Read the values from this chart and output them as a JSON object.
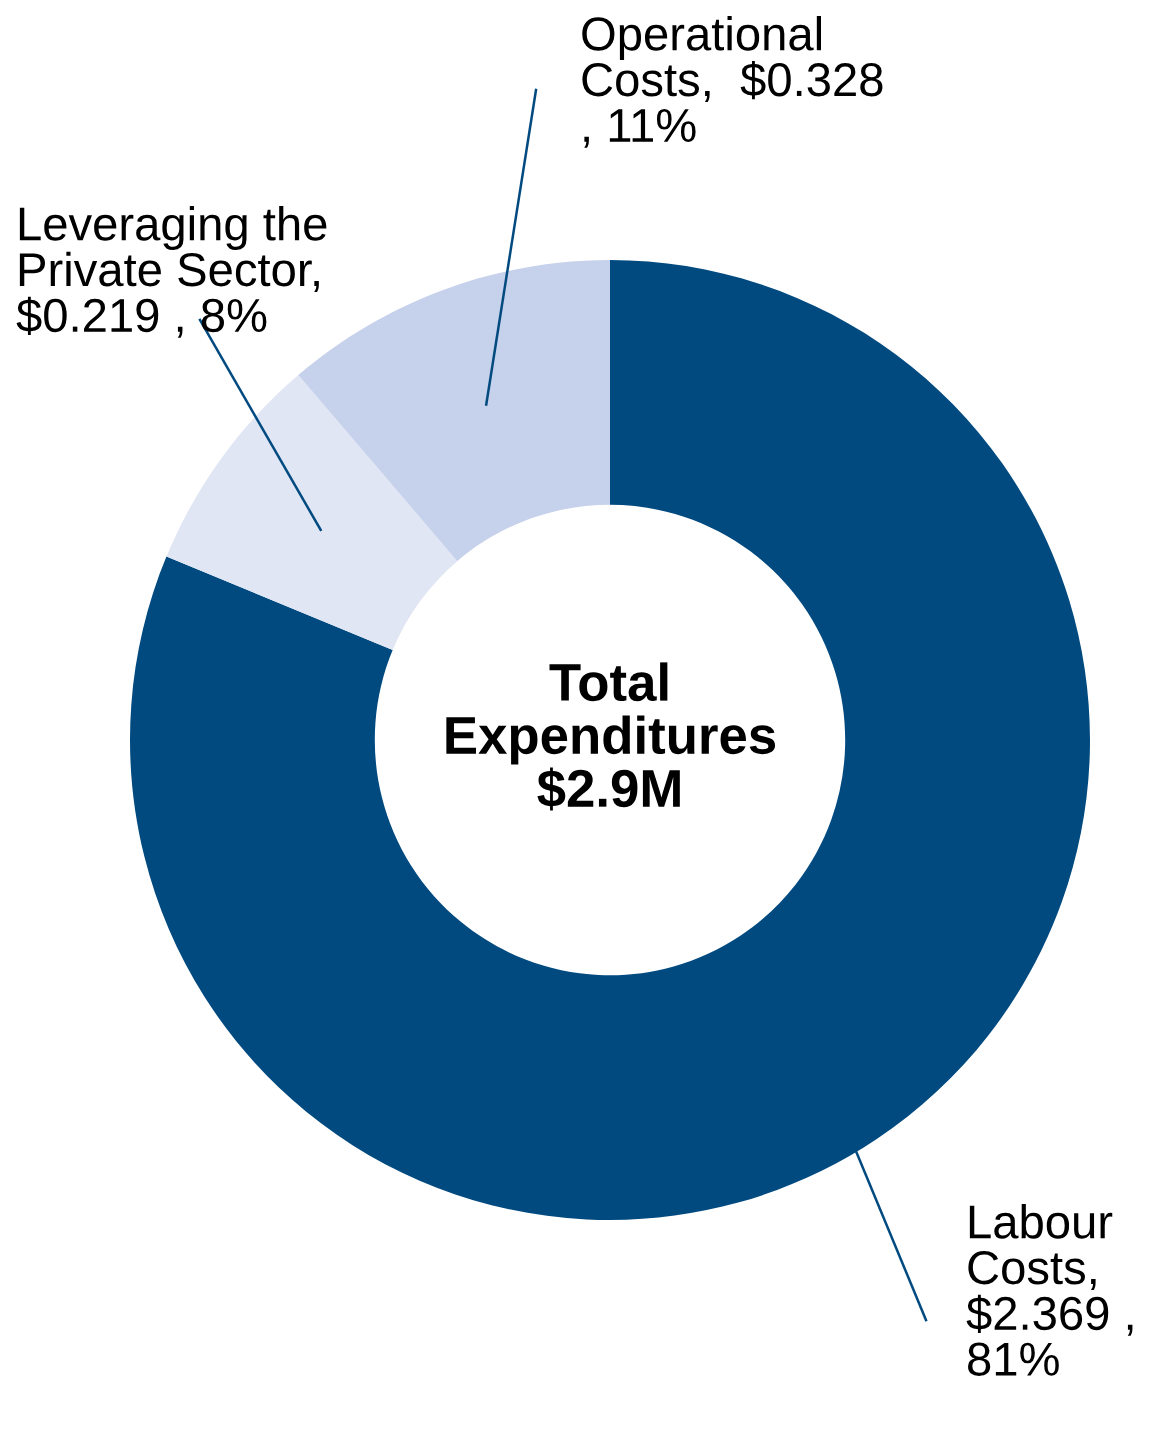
{
  "chart_data": {
    "type": "donut",
    "categories": [
      "Labour\nCosts,\n$2.369 ,\n81%",
      "Leveraging the\nPrivate Sector,\n$0.219 , 8%",
      "Operational\nCosts,  $0.328\n, 11%"
    ],
    "values": [
      2.369,
      0.219,
      0.328
    ],
    "colors": [
      "#004a80",
      "#e1e6f4",
      "#c6d1eb"
    ],
    "annotations": [
      "Total\nExpenditures\n$2.9M"
    ],
    "legend": false
  }
}
